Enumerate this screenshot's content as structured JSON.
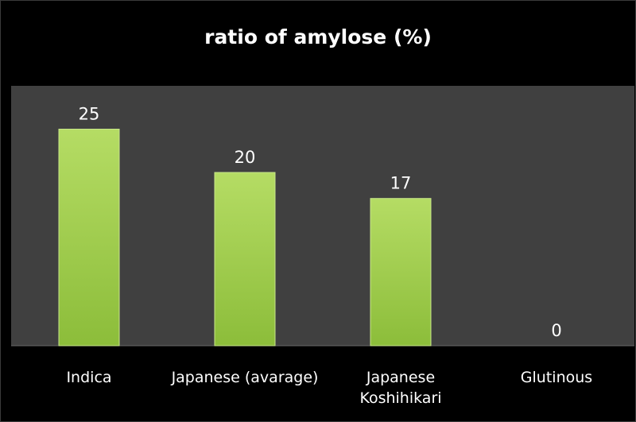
{
  "chart_data": {
    "type": "bar",
    "title": "ratio of amylose (%)",
    "categories": [
      "Indica",
      "Japanese (avarage)",
      "Japanese Koshihikari",
      "Glutinous"
    ],
    "category_lines": [
      [
        "Indica"
      ],
      [
        "Japanese (avarage)"
      ],
      [
        "Japanese",
        "Koshihikari"
      ],
      [
        "Glutinous"
      ]
    ],
    "values": [
      25,
      20,
      17,
      0
    ],
    "data_labels": [
      "25",
      "20",
      "17",
      "0"
    ],
    "ylim": [
      0,
      30
    ],
    "grid": false,
    "legend": "none",
    "colors": {
      "background": "#000000",
      "plot_area": "#404040",
      "bar": "#9ACD44",
      "bar_edge": "#C8E68A",
      "text": "#ffffff"
    }
  }
}
